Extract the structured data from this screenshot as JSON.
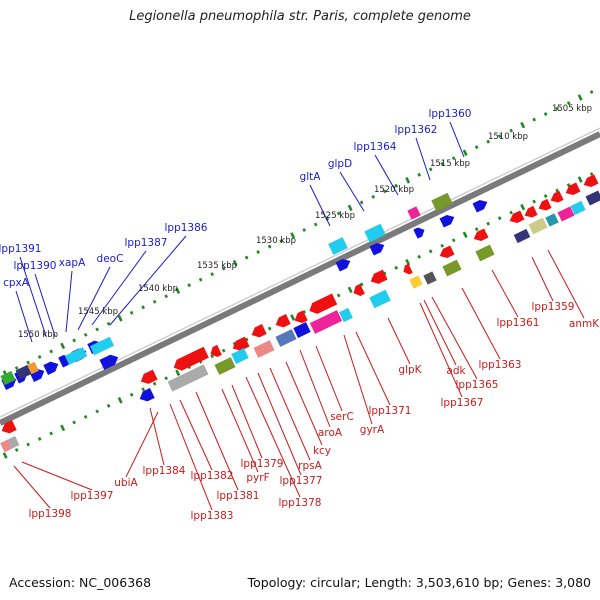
{
  "title": "Legionella pneumophila str. Paris, complete genome",
  "footer": {
    "accession": "Accession: NC_006368",
    "summary": "Topology: circular; Length: 3,503,610 bp; Genes: 3,080"
  },
  "colors": {
    "label_forward": "#1a1acc",
    "label_reverse": "#cc1a1a",
    "ruler_tick": "#1f8a1f",
    "backbone": "#7a7a7a"
  },
  "kbp_labels": [
    "1505 kbp",
    "1510 kbp",
    "1515 kbp",
    "1520 kbp",
    "1525 kbp",
    "1530 kbp",
    "1535 kbp",
    "1540 kbp",
    "1545 kbp",
    "1550 kbp"
  ],
  "forward_genes": [
    "lpp1360",
    "lpp1362",
    "lpp1364",
    "glpD",
    "gltA",
    "lpp1386",
    "lpp1387",
    "deoC",
    "xapA",
    "lpp1390",
    "lpp1391",
    "cpxA"
  ],
  "reverse_genes": [
    "anmK",
    "lpp1359",
    "lpp1361",
    "lpp1363",
    "lpp1365",
    "adk",
    "lpp1367",
    "glpK",
    "lpp1371",
    "gyrA",
    "serC",
    "aroA",
    "kcy",
    "rpsA",
    "lpp1377",
    "lpp1378",
    "lpp1379",
    "pyrF",
    "lpp1381",
    "lpp1382",
    "lpp1383",
    "lpp1384",
    "ubiA",
    "lpp1397",
    "lpp1398"
  ]
}
